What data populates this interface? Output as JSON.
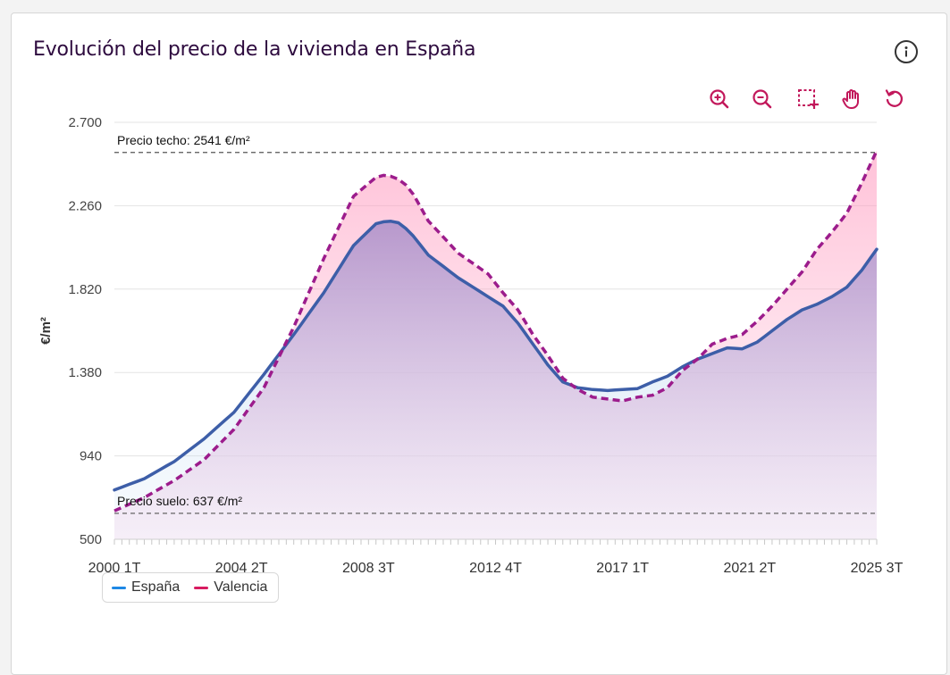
{
  "card": {
    "title": "Evolución del precio de la vivienda en España",
    "info_icon": "info-icon"
  },
  "toolbar": {
    "icons": [
      "zoom-in-icon",
      "zoom-out-icon",
      "selection-zoom-icon",
      "pan-hand-icon",
      "reset-icon"
    ],
    "accent_color": "#c2185b"
  },
  "chart_data": {
    "type": "area",
    "ylabel": "€/m²",
    "ylim": [
      500,
      2700
    ],
    "yticks": [
      500,
      940,
      1380,
      1820,
      2260,
      2700
    ],
    "ytick_labels": [
      "500",
      "940",
      "1.380",
      "1.820",
      "2.260",
      "2.700"
    ],
    "xtick_labels": [
      "2000 1T",
      "2004 2T",
      "2008 3T",
      "2012 4T",
      "2017 1T",
      "2021 2T",
      "2025 3T"
    ],
    "xtick_positions": [
      0,
      17,
      34,
      51,
      68,
      85,
      102
    ],
    "x_count": 103,
    "grid": true,
    "reference_lines": [
      {
        "label": "Precio techo: 2541 €/m²",
        "value": 2541
      },
      {
        "label": "Precio suelo: 637 €/m²",
        "value": 637
      }
    ],
    "series": [
      {
        "name": "España",
        "color": "#3d5ea8",
        "legend_color": "#1e88e5",
        "style": "solid",
        "keyframes": [
          [
            0,
            760
          ],
          [
            4,
            820
          ],
          [
            8,
            910
          ],
          [
            12,
            1030
          ],
          [
            16,
            1170
          ],
          [
            20,
            1370
          ],
          [
            24,
            1580
          ],
          [
            28,
            1800
          ],
          [
            32,
            2050
          ],
          [
            35,
            2165
          ],
          [
            36,
            2175
          ],
          [
            37,
            2178
          ],
          [
            38,
            2170
          ],
          [
            39,
            2140
          ],
          [
            40,
            2100
          ],
          [
            42,
            2000
          ],
          [
            46,
            1880
          ],
          [
            50,
            1780
          ],
          [
            52,
            1730
          ],
          [
            54,
            1640
          ],
          [
            56,
            1530
          ],
          [
            58,
            1420
          ],
          [
            60,
            1330
          ],
          [
            62,
            1300
          ],
          [
            64,
            1290
          ],
          [
            66,
            1285
          ],
          [
            70,
            1295
          ],
          [
            72,
            1330
          ],
          [
            74,
            1360
          ],
          [
            76,
            1410
          ],
          [
            78,
            1450
          ],
          [
            80,
            1480
          ],
          [
            82,
            1510
          ],
          [
            84,
            1505
          ],
          [
            86,
            1540
          ],
          [
            88,
            1600
          ],
          [
            90,
            1660
          ],
          [
            92,
            1710
          ],
          [
            94,
            1740
          ],
          [
            96,
            1780
          ],
          [
            98,
            1830
          ],
          [
            100,
            1920
          ],
          [
            102,
            2030
          ]
        ]
      },
      {
        "name": "Valencia",
        "color": "#9c1c8c",
        "legend_color": "#d81b60",
        "style": "dashed",
        "keyframes": [
          [
            0,
            650
          ],
          [
            4,
            720
          ],
          [
            8,
            810
          ],
          [
            12,
            920
          ],
          [
            16,
            1080
          ],
          [
            20,
            1300
          ],
          [
            24,
            1620
          ],
          [
            28,
            1980
          ],
          [
            32,
            2310
          ],
          [
            35,
            2410
          ],
          [
            36,
            2420
          ],
          [
            37,
            2415
          ],
          [
            38,
            2400
          ],
          [
            39,
            2370
          ],
          [
            40,
            2320
          ],
          [
            42,
            2180
          ],
          [
            46,
            2010
          ],
          [
            50,
            1900
          ],
          [
            52,
            1800
          ],
          [
            54,
            1710
          ],
          [
            56,
            1580
          ],
          [
            58,
            1470
          ],
          [
            60,
            1350
          ],
          [
            62,
            1290
          ],
          [
            64,
            1250
          ],
          [
            66,
            1240
          ],
          [
            68,
            1230
          ],
          [
            70,
            1250
          ],
          [
            72,
            1260
          ],
          [
            74,
            1300
          ],
          [
            76,
            1390
          ],
          [
            78,
            1450
          ],
          [
            80,
            1530
          ],
          [
            82,
            1560
          ],
          [
            84,
            1580
          ],
          [
            86,
            1650
          ],
          [
            88,
            1730
          ],
          [
            90,
            1820
          ],
          [
            92,
            1910
          ],
          [
            94,
            2030
          ],
          [
            96,
            2120
          ],
          [
            98,
            2220
          ],
          [
            100,
            2380
          ],
          [
            102,
            2550
          ]
        ]
      }
    ]
  }
}
